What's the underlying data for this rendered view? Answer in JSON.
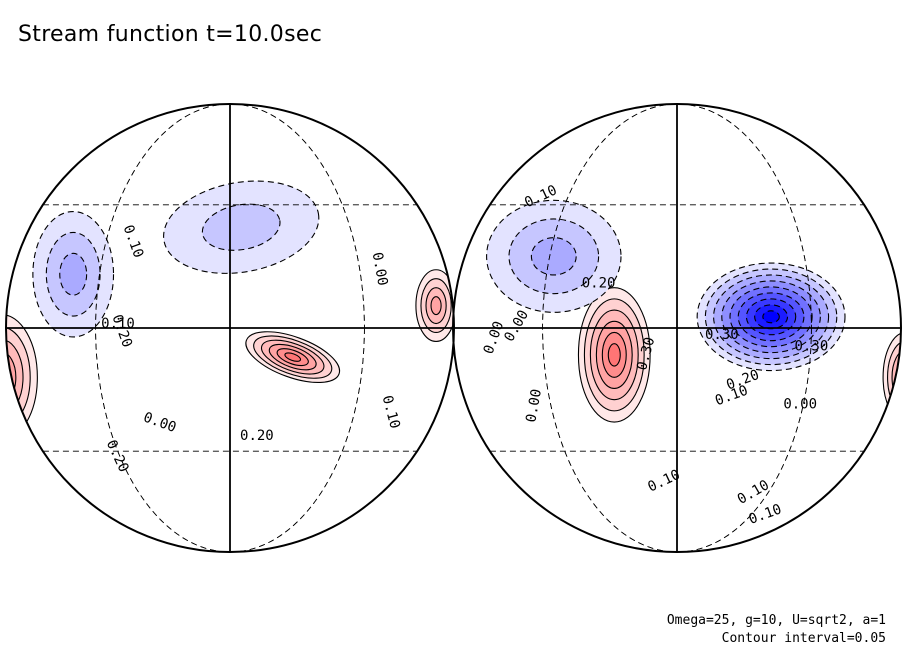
{
  "title": "Stream function t=10.0sec",
  "parameters": {
    "line1": "Omega=25, g=10, U=sqrt2, a=1",
    "line2": "Contour interval=0.05"
  },
  "chart_data": {
    "type": "heatmap",
    "projection": "orthographic (two hemispheres)",
    "variable": "Stream function",
    "time": "t=10.0sec",
    "contour_interval": 0.05,
    "colormap": {
      "negative": "#0000ff",
      "zero": "#ffffff",
      "positive": "#ff3030"
    },
    "hemispheres": [
      {
        "name": "left",
        "features": [
          {
            "sign": "positive",
            "peak": 0.3
          },
          {
            "sign": "positive",
            "peak": 0.25
          },
          {
            "sign": "positive",
            "peak": 0.2
          },
          {
            "sign": "negative",
            "peak": -0.15
          },
          {
            "sign": "negative",
            "peak": -0.1
          }
        ],
        "contour_labels": [
          "0.10",
          "0.20",
          "0.00",
          "0.10",
          "0.00",
          "0.10",
          "0.20",
          "0.20"
        ]
      },
      {
        "name": "right",
        "features": [
          {
            "sign": "positive",
            "peak": 0.3
          },
          {
            "sign": "negative",
            "peak": -0.45
          },
          {
            "sign": "positive",
            "peak": 0.25
          },
          {
            "sign": "negative",
            "peak": -0.15
          }
        ],
        "contour_labels": [
          "0.10",
          "0.00",
          "0.20",
          "0.30",
          "0.30",
          "0.30",
          "0.20",
          "0.10",
          "0.00",
          "0.00",
          "0.00",
          "0.10",
          "0.10",
          "0.10"
        ]
      }
    ]
  }
}
